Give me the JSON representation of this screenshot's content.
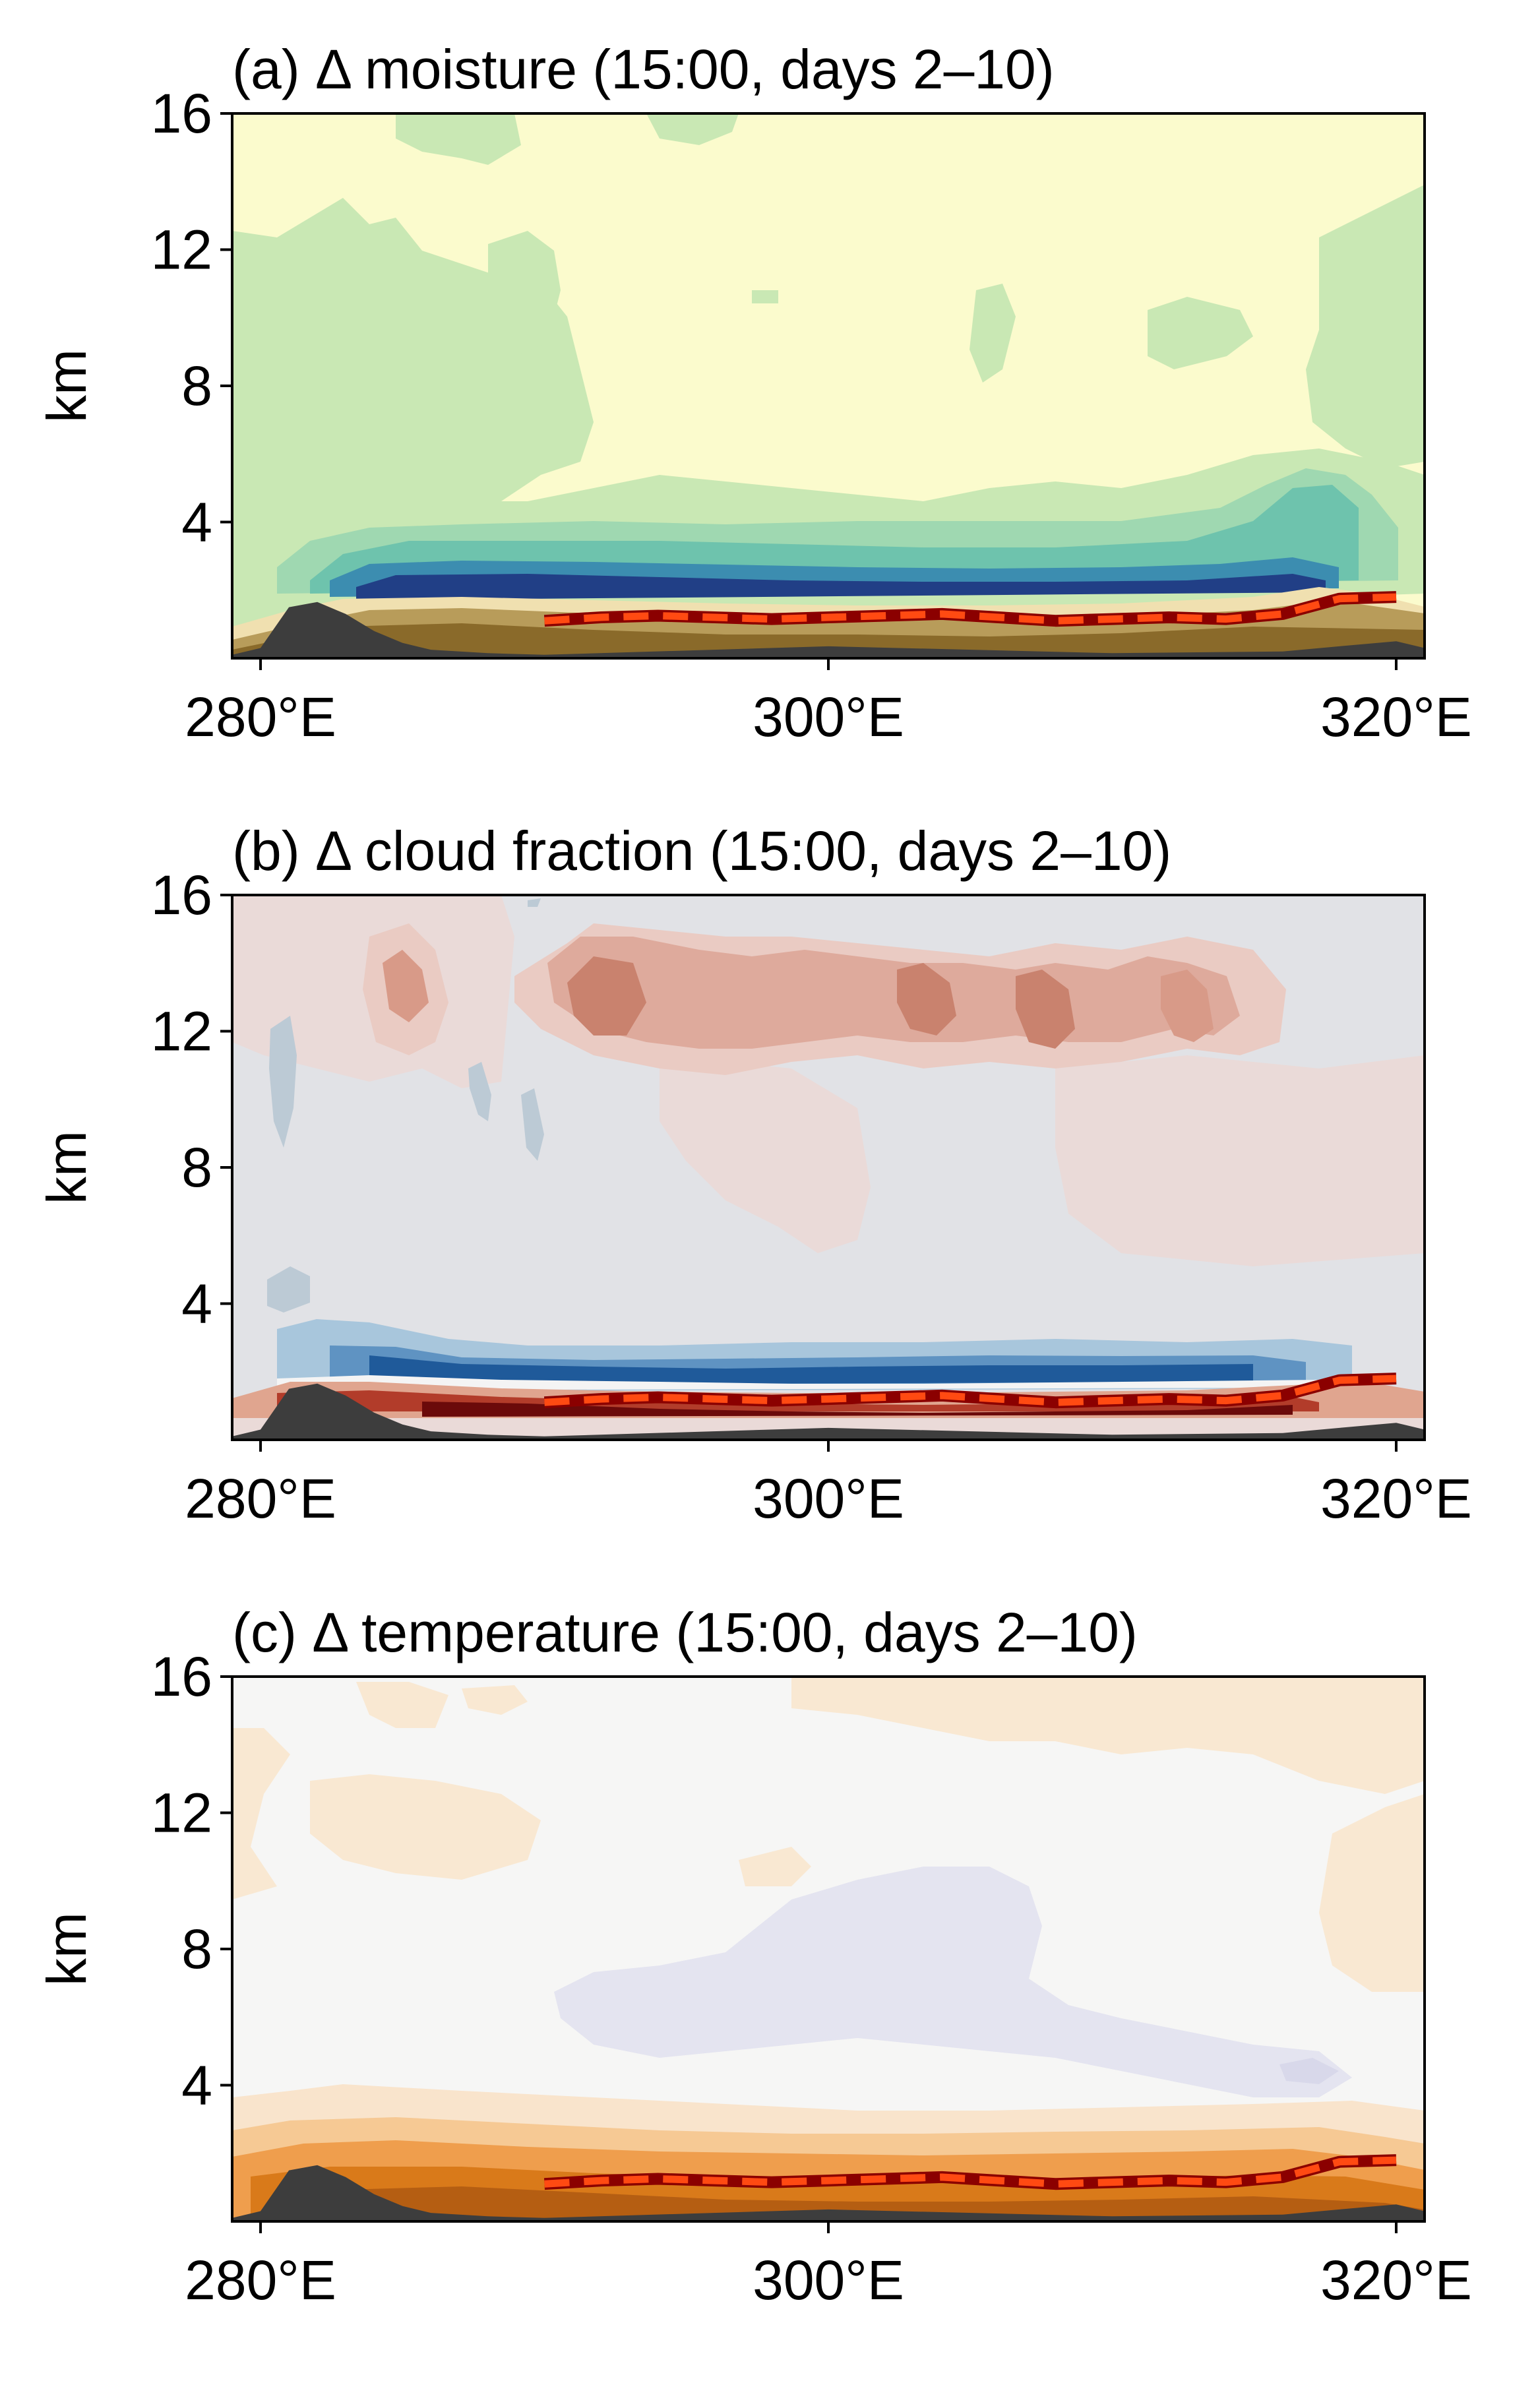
{
  "colors": {
    "terrain": "#3d3d3d",
    "pbl_line": "#8b0000",
    "pbl_dash": "#ff4a12",
    "axis": "#000000",
    "panel_a_base": "#fbfbcd",
    "panel_a_green": "#c9e8b4",
    "panel_a_teal": "#6ec3ad",
    "panel_a_blue": "#213f86",
    "panel_a_brown": "#8a6a2a",
    "panel_b_base": "#e1e2e6",
    "panel_b_red": "#d89a88",
    "panel_b_blue": "#1f5a9a",
    "panel_c_base": "#f6f6f5",
    "panel_c_orange": "#e98f2a",
    "panel_c_tan": "#f9e8d2",
    "panel_c_lavender": "#e4e4f0"
  },
  "chart_data": [
    {
      "type": "heatmap",
      "title": "(a) Δ moisture (15:00, days 2–10)",
      "xlabel": "",
      "ylabel": "km",
      "xlim": [
        279,
        321
      ],
      "ylim": [
        0,
        16
      ],
      "xticks": [
        280,
        300,
        320
      ],
      "xticklabels": [
        "280°E",
        "300°E",
        "320°E"
      ],
      "yticks": [
        4,
        8,
        12,
        16
      ],
      "yticklabels": [
        "4",
        "8",
        "12",
        "16"
      ],
      "boundary_layer_height_km": {
        "x": [
          290,
          292,
          294,
          296,
          298,
          300,
          302,
          304,
          306,
          308,
          310,
          312,
          314,
          316,
          318,
          320
        ],
        "y": [
          1.1,
          1.2,
          1.25,
          1.2,
          1.15,
          1.2,
          1.25,
          1.3,
          1.2,
          1.1,
          1.15,
          1.2,
          1.15,
          1.3,
          1.75,
          1.8
        ]
      },
      "terrain_km": {
        "x": [
          279,
          280,
          281,
          282,
          283,
          284,
          285,
          286,
          288,
          290,
          300,
          310,
          316,
          318,
          320,
          321
        ],
        "y": [
          0.1,
          0.3,
          1.5,
          1.65,
          1.3,
          0.8,
          0.45,
          0.25,
          0.15,
          0.1,
          0.35,
          0.15,
          0.2,
          0.35,
          0.5,
          0.3
        ]
      }
    },
    {
      "type": "heatmap",
      "title": "(b) Δ cloud fraction (15:00, days 2–10)",
      "xlabel": "",
      "ylabel": "km",
      "xlim": [
        279,
        321
      ],
      "ylim": [
        0,
        16
      ],
      "xticks": [
        280,
        300,
        320
      ],
      "xticklabels": [
        "280°E",
        "300°E",
        "320°E"
      ],
      "yticks": [
        4,
        8,
        12,
        16
      ],
      "yticklabels": [
        "4",
        "8",
        "12",
        "16"
      ],
      "boundary_layer_height_km": {
        "x": [
          290,
          292,
          294,
          296,
          298,
          300,
          302,
          304,
          306,
          308,
          310,
          312,
          314,
          316,
          318,
          320
        ],
        "y": [
          1.1,
          1.2,
          1.25,
          1.2,
          1.15,
          1.2,
          1.25,
          1.3,
          1.2,
          1.1,
          1.15,
          1.2,
          1.15,
          1.3,
          1.75,
          1.8
        ]
      },
      "terrain_km": {
        "x": [
          279,
          280,
          281,
          282,
          283,
          284,
          285,
          286,
          288,
          290,
          300,
          310,
          316,
          318,
          320,
          321
        ],
        "y": [
          0.1,
          0.3,
          1.5,
          1.65,
          1.3,
          0.8,
          0.45,
          0.25,
          0.15,
          0.1,
          0.35,
          0.15,
          0.2,
          0.35,
          0.5,
          0.3
        ]
      }
    },
    {
      "type": "heatmap",
      "title": "(c) Δ temperature (15:00, days 2–10)",
      "xlabel": "",
      "ylabel": "km",
      "xlim": [
        279,
        321
      ],
      "ylim": [
        0,
        16
      ],
      "xticks": [
        280,
        300,
        320
      ],
      "xticklabels": [
        "280°E",
        "300°E",
        "320°E"
      ],
      "yticks": [
        4,
        8,
        12,
        16
      ],
      "yticklabels": [
        "4",
        "8",
        "12",
        "16"
      ],
      "boundary_layer_height_km": {
        "x": [
          290,
          292,
          294,
          296,
          298,
          300,
          302,
          304,
          306,
          308,
          310,
          312,
          314,
          316,
          318,
          320
        ],
        "y": [
          1.1,
          1.2,
          1.25,
          1.2,
          1.15,
          1.2,
          1.25,
          1.3,
          1.2,
          1.1,
          1.15,
          1.2,
          1.15,
          1.3,
          1.75,
          1.8
        ]
      },
      "terrain_km": {
        "x": [
          279,
          280,
          281,
          282,
          283,
          284,
          285,
          286,
          288,
          290,
          300,
          310,
          316,
          318,
          320,
          321
        ],
        "y": [
          0.1,
          0.3,
          1.5,
          1.65,
          1.3,
          0.8,
          0.45,
          0.25,
          0.15,
          0.1,
          0.35,
          0.15,
          0.2,
          0.35,
          0.5,
          0.3
        ]
      }
    }
  ]
}
